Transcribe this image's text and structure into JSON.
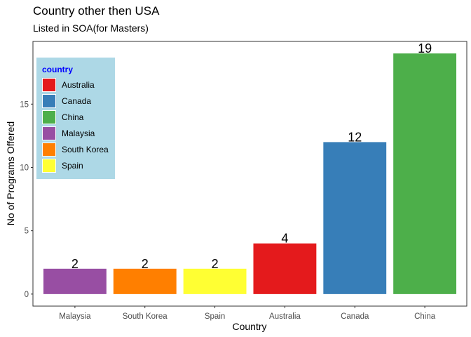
{
  "chart_data": {
    "type": "bar",
    "title": "Country other then USA",
    "subtitle": "Listed in SOA(for Masters)",
    "xlabel": "Country",
    "ylabel": "No of Programs Offered",
    "categories": [
      "Malaysia",
      "South Korea",
      "Spain",
      "Australia",
      "Canada",
      "China"
    ],
    "values": [
      2,
      2,
      2,
      4,
      12,
      19
    ],
    "bar_colors": [
      "#984ea3",
      "#ff7f00",
      "#ffff33",
      "#e41a1c",
      "#377eb8",
      "#4daf4a"
    ],
    "yticks": [
      0,
      5,
      10,
      15
    ],
    "ylim": [
      -0.95,
      19.95
    ],
    "grid": false,
    "legend": {
      "title": "country",
      "placement": "top-left",
      "items": [
        {
          "label": "Australia",
          "color": "#e41a1c"
        },
        {
          "label": "Canada",
          "color": "#377eb8"
        },
        {
          "label": "China",
          "color": "#4daf4a"
        },
        {
          "label": "Malaysia",
          "color": "#984ea3"
        },
        {
          "label": "South Korea",
          "color": "#ff7f00"
        },
        {
          "label": "Spain",
          "color": "#ffff33"
        }
      ]
    }
  }
}
